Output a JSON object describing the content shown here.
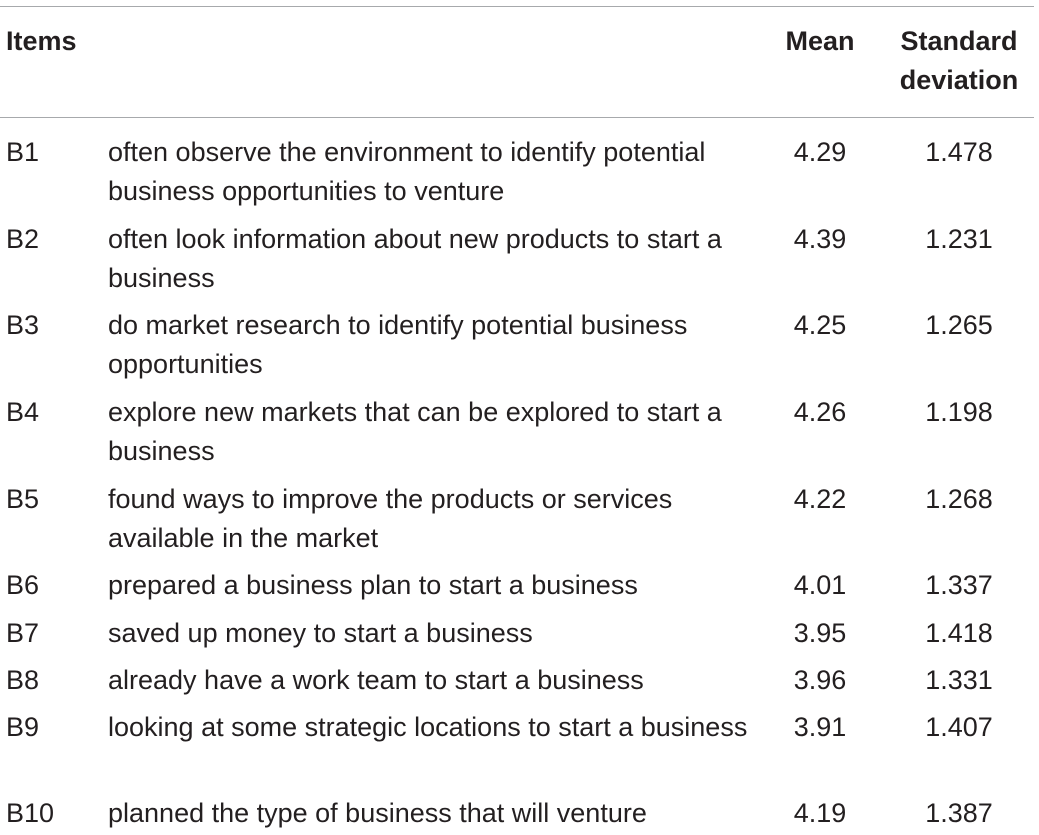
{
  "table": {
    "headers": {
      "items": "Items",
      "mean": "Mean",
      "sd": "Standard deviation"
    },
    "rows": [
      {
        "id": "B1",
        "desc": "often observe the environment to identify potential business opportunities to venture",
        "mean": "4.29",
        "sd": "1.478"
      },
      {
        "id": "B2",
        "desc": "often look information about new products to start a business",
        "mean": "4.39",
        "sd": "1.231"
      },
      {
        "id": "B3",
        "desc": "do market research to identify potential business opportunities",
        "mean": "4.25",
        "sd": "1.265"
      },
      {
        "id": "B4",
        "desc": "explore new markets that can be explored to start a business",
        "mean": "4.26",
        "sd": "1.198"
      },
      {
        "id": "B5",
        "desc": "found ways to improve the products or services available in the market",
        "mean": "4.22",
        "sd": "1.268"
      },
      {
        "id": "B6",
        "desc": "prepared a business plan to start a business",
        "mean": "4.01",
        "sd": "1.337"
      },
      {
        "id": "B7",
        "desc": "saved up money to start a business",
        "mean": "3.95",
        "sd": "1.418"
      },
      {
        "id": "B8",
        "desc": "already have a work team to start a business",
        "mean": "3.96",
        "sd": "1.331"
      },
      {
        "id": "B9",
        "desc": "looking at some strategic locations to start a business",
        "mean": "3.91",
        "sd": "1.407"
      },
      {
        "id": "B10",
        "desc": "planned the type of business that will venture",
        "mean": "4.19",
        "sd": "1.387"
      }
    ]
  }
}
